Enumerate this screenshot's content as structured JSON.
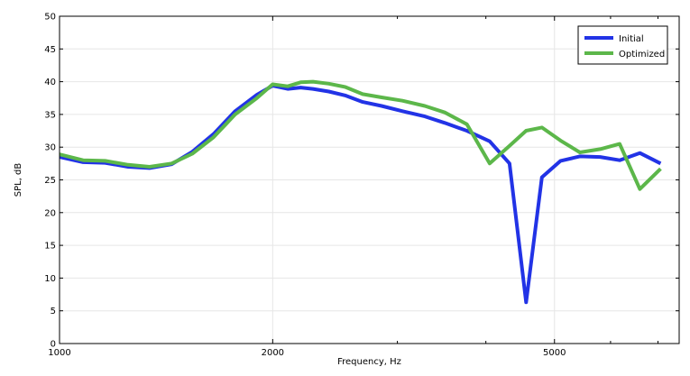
{
  "chart_data": {
    "type": "line",
    "xlabel": "Frequency, Hz",
    "ylabel": "SPL, dB",
    "xscale": "log",
    "xlim": [
      1000,
      7500
    ],
    "ylim": [
      0,
      50
    ],
    "xticks": [
      1000,
      2000,
      5000
    ],
    "xtick_labels": [
      "1000",
      "2000",
      "5000"
    ],
    "yticks": [
      0,
      5,
      10,
      15,
      20,
      25,
      30,
      35,
      40,
      45,
      50
    ],
    "ytick_labels": [
      "0",
      "5",
      "10",
      "15",
      "20",
      "25",
      "30",
      "35",
      "40",
      "45",
      "50"
    ],
    "grid": true,
    "legend_position": "top-right",
    "series": [
      {
        "name": "Initial",
        "color": "#2233e6",
        "x": [
          1000,
          1080,
          1160,
          1250,
          1340,
          1440,
          1540,
          1650,
          1770,
          1900,
          2000,
          2100,
          2190,
          2280,
          2400,
          2530,
          2680,
          2850,
          3050,
          3280,
          3500,
          3760,
          4050,
          4320,
          4560,
          4800,
          5100,
          5430,
          5800,
          6180,
          6600,
          7060
        ],
        "y": [
          28.5,
          27.7,
          27.6,
          27.0,
          26.8,
          27.4,
          29.3,
          32.0,
          35.5,
          38.0,
          39.4,
          38.9,
          39.1,
          38.9,
          38.5,
          37.9,
          36.9,
          36.3,
          35.5,
          34.7,
          33.7,
          32.5,
          30.9,
          27.5,
          6.3,
          25.4,
          27.9,
          28.6,
          28.5,
          28.0,
          29.1,
          27.5
        ]
      },
      {
        "name": "Optimized",
        "color": "#5cb74a",
        "x": [
          1000,
          1080,
          1160,
          1250,
          1340,
          1440,
          1540,
          1650,
          1770,
          1900,
          2000,
          2100,
          2190,
          2280,
          2400,
          2530,
          2680,
          2850,
          3050,
          3280,
          3500,
          3760,
          4050,
          4320,
          4560,
          4800,
          5100,
          5430,
          5800,
          6180,
          6600,
          7060
        ],
        "y": [
          28.9,
          28.0,
          27.9,
          27.3,
          27.0,
          27.5,
          29.0,
          31.5,
          35.0,
          37.5,
          39.6,
          39.3,
          39.9,
          40.0,
          39.7,
          39.2,
          38.1,
          37.6,
          37.1,
          36.3,
          35.3,
          33.5,
          27.5,
          30.2,
          32.5,
          33.0,
          31.0,
          29.2,
          29.7,
          30.5,
          23.6,
          26.7
        ]
      }
    ]
  }
}
